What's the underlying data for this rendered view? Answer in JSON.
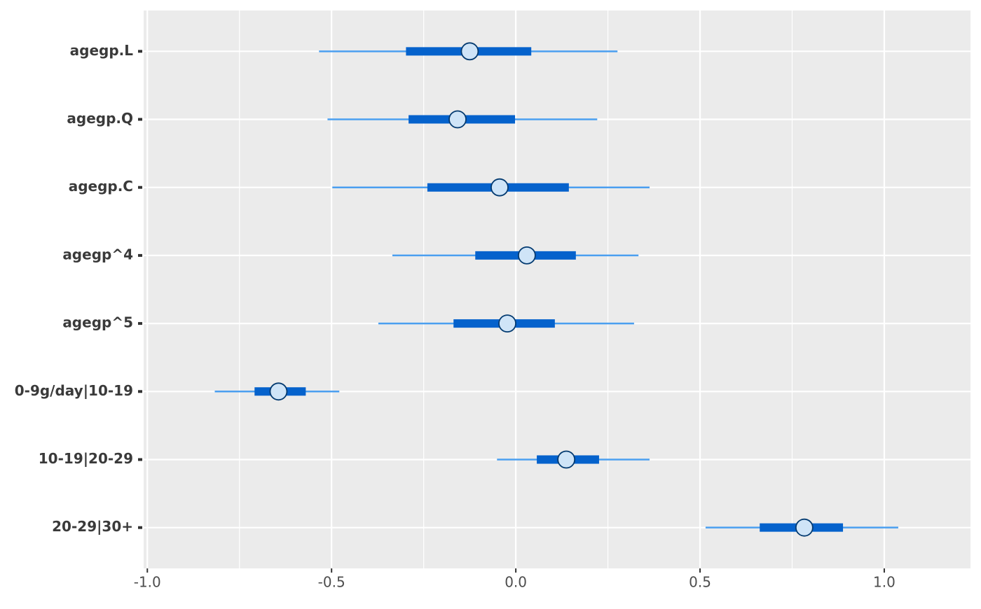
{
  "chart_data": {
    "type": "intervals",
    "categories": [
      "agegp.L",
      "agegp.Q",
      "agegp.C",
      "agegp^4",
      "agegp^5",
      "0-9g/day|10-19",
      "10-19|20-29",
      "20-29|30+"
    ],
    "outer_low": [
      -0.534,
      -0.511,
      -0.498,
      -0.335,
      -0.373,
      -0.817,
      -0.051,
      0.515
    ],
    "inner_low": [
      -0.298,
      -0.291,
      -0.24,
      -0.11,
      -0.169,
      -0.709,
      0.057,
      0.662
    ],
    "estimate": [
      -0.125,
      -0.158,
      -0.044,
      0.03,
      -0.023,
      -0.644,
      0.137,
      0.783
    ],
    "inner_high": [
      0.042,
      -0.002,
      0.144,
      0.163,
      0.106,
      -0.57,
      0.226,
      0.888
    ],
    "outer_high": [
      0.276,
      0.221,
      0.363,
      0.333,
      0.321,
      -0.479,
      0.363,
      1.038
    ],
    "colors": {
      "outer": "#4b9ff0",
      "inner": "#0562cc",
      "point_fill": "#cfe4f7",
      "point_stroke": "#033a70"
    },
    "xlim": [
      -1.01,
      1.234
    ],
    "xticks": [
      {
        "value": -1.0,
        "label": "-1.0"
      },
      {
        "value": -0.5,
        "label": "-0.5"
      },
      {
        "value": 0.0,
        "label": "0.0"
      },
      {
        "value": 0.5,
        "label": "0.5"
      },
      {
        "value": 1.0,
        "label": "1.0"
      }
    ],
    "minor_xticks": [
      -0.75,
      -0.25,
      0.25,
      0.75
    ],
    "grid": true
  }
}
